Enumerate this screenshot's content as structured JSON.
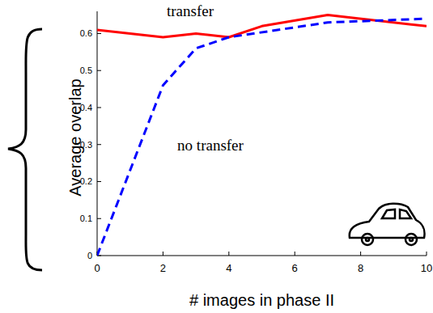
{
  "chart_data": {
    "type": "line",
    "x_label": "# images in phase II",
    "y_label": "Average overlap",
    "xlim": [
      0,
      10
    ],
    "ylim": [
      0,
      0.66
    ],
    "xticks": [
      0,
      2,
      4,
      6,
      8,
      10
    ],
    "yticks": [
      0,
      0.1,
      0.2,
      0.3,
      0.4,
      0.5,
      0.6
    ],
    "grid": false,
    "series": [
      {
        "name": "transfer",
        "color": "#ff0000",
        "line_style": "solid",
        "x": [
          0,
          2,
          3,
          4,
          5,
          7,
          10
        ],
        "values": [
          0.61,
          0.59,
          0.6,
          0.59,
          0.62,
          0.65,
          0.62
        ]
      },
      {
        "name": "no transfer",
        "color": "#0000ff",
        "line_style": "dashed",
        "x": [
          0,
          2,
          3,
          4,
          7,
          10
        ],
        "values": [
          0,
          0.46,
          0.56,
          0.59,
          0.63,
          0.64
        ]
      }
    ]
  }
}
